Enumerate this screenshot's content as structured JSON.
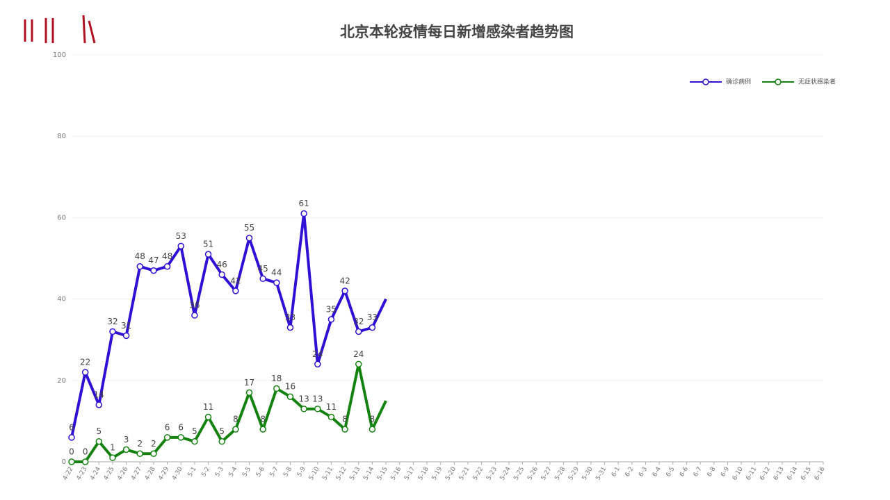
{
  "chart_data": {
    "type": "line",
    "title": "北京本轮疫情每日新增感染者趋势图",
    "categories": [
      "4-22",
      "4-23",
      "4-24",
      "4-25",
      "4-26",
      "4-27",
      "4-28",
      "4-29",
      "4-30",
      "5-1",
      "5-2",
      "5-3",
      "5-4",
      "5-5",
      "5-6",
      "5-7",
      "5-8",
      "5-9",
      "5-10",
      "5-11",
      "5-12",
      "5-13",
      "5-14",
      "5-15",
      "5-16",
      "5-17",
      "5-18",
      "5-19",
      "5-20",
      "5-21",
      "5-22",
      "5-23",
      "5-24",
      "5-25",
      "5-26",
      "5-27",
      "5-28",
      "5-29",
      "5-30",
      "5-31",
      "6-1",
      "6-2",
      "6-3",
      "6-4",
      "6-5",
      "6-6",
      "6-7",
      "6-8",
      "6-9",
      "6-10",
      "6-11",
      "6-12",
      "6-13",
      "6-14",
      "6-15",
      "6-16"
    ],
    "series": [
      {
        "name": "确诊病例",
        "color": "#2f10d4",
        "values": [
          6,
          22,
          14,
          32,
          31,
          48,
          47,
          48,
          53,
          36,
          51,
          46,
          42,
          55,
          45,
          44,
          33,
          61,
          24,
          35,
          42,
          32,
          33,
          40,
          null,
          null,
          null,
          null,
          null,
          null,
          null,
          null,
          null,
          null,
          null,
          null,
          null,
          null,
          null,
          null,
          null,
          null,
          null,
          null,
          null,
          null,
          null,
          null,
          null,
          null,
          null,
          null,
          null,
          null,
          null,
          null
        ],
        "value_labels": [
          "6",
          "22",
          "14",
          "32",
          "31",
          "48",
          "47",
          "48",
          "53",
          "36",
          "51",
          "46",
          "42",
          "55",
          "45",
          "44",
          "33",
          "61",
          "24",
          "35",
          "42",
          "32",
          "33",
          null,
          null,
          null,
          null,
          null,
          null,
          null,
          null,
          null,
          null,
          null,
          null,
          null,
          null,
          null,
          null,
          null,
          null,
          null,
          null,
          null,
          null,
          null,
          null,
          null,
          null,
          null,
          null,
          null,
          null,
          null,
          null,
          null
        ]
      },
      {
        "name": "无症状感染者",
        "color": "#13820f",
        "values": [
          0,
          0,
          5,
          1,
          3,
          2,
          2,
          6,
          6,
          5,
          11,
          5,
          8,
          17,
          8,
          18,
          16,
          13,
          13,
          11,
          8,
          24,
          8,
          15,
          null,
          null,
          null,
          null,
          null,
          null,
          null,
          null,
          null,
          null,
          null,
          null,
          null,
          null,
          null,
          null,
          null,
          null,
          null,
          null,
          null,
          null,
          null,
          null,
          null,
          null,
          null,
          null,
          null,
          null,
          null,
          null
        ],
        "value_labels": [
          "0",
          "0",
          "5",
          "1",
          "3",
          "2",
          "2",
          "6",
          "6",
          "5",
          "11",
          "5",
          "8",
          "17",
          "8",
          "18",
          "16",
          "13",
          "13",
          "11",
          "8",
          "24",
          "8",
          null,
          null,
          null,
          null,
          null,
          null,
          null,
          null,
          null,
          null,
          null,
          null,
          null,
          null,
          null,
          null,
          null,
          null,
          null,
          null,
          null,
          null,
          null,
          null,
          null,
          null,
          null,
          null,
          null,
          null,
          null,
          null,
          null
        ]
      }
    ],
    "ylim": [
      0,
      100
    ],
    "yticks": [
      0,
      20,
      40,
      60,
      80,
      100
    ],
    "grid": true,
    "legend": "top-right"
  }
}
